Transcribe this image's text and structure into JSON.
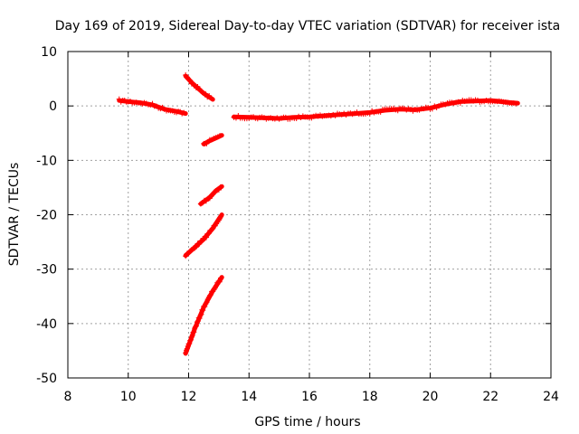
{
  "chart_data": {
    "type": "scatter",
    "title": "Day 169 of 2019, Sidereal Day-to-day VTEC variation (SDTVAR) for receiver ista",
    "xlabel": "GPS time / hours",
    "ylabel": "SDTVAR / TECUs",
    "xlim": [
      8,
      24
    ],
    "ylim": [
      -50,
      10
    ],
    "xticks": [
      8,
      10,
      12,
      14,
      16,
      18,
      20,
      22,
      24
    ],
    "yticks": [
      -50,
      -40,
      -30,
      -20,
      -10,
      0,
      10
    ],
    "grid": true,
    "marker": "+",
    "color": "#ff0000",
    "series": [
      {
        "name": "segment-1",
        "x": [
          9.7,
          10.0,
          10.4,
          10.8,
          11.2,
          11.6,
          11.9
        ],
        "y": [
          1.0,
          0.8,
          0.6,
          0.2,
          -0.6,
          -1.0,
          -1.4
        ]
      },
      {
        "name": "segment-2",
        "x": [
          11.9,
          12.1,
          12.3,
          12.5,
          12.8
        ],
        "y": [
          5.5,
          4.3,
          3.3,
          2.3,
          1.2
        ]
      },
      {
        "name": "segment-3",
        "x": [
          12.5,
          12.7,
          12.9,
          13.1
        ],
        "y": [
          -7.0,
          -6.4,
          -5.9,
          -5.4
        ]
      },
      {
        "name": "segment-4",
        "x": [
          12.4,
          12.7,
          12.9,
          13.1
        ],
        "y": [
          -18.0,
          -16.8,
          -15.6,
          -14.8
        ]
      },
      {
        "name": "segment-5",
        "x": [
          11.9,
          12.2,
          12.5,
          12.8,
          13.0,
          13.1
        ],
        "y": [
          -27.5,
          -26.0,
          -24.5,
          -22.5,
          -20.8,
          -20.0
        ]
      },
      {
        "name": "segment-6",
        "x": [
          11.9,
          12.2,
          12.5,
          12.8,
          13.1
        ],
        "y": [
          -45.5,
          -41.0,
          -37.0,
          -34.0,
          -31.5
        ]
      },
      {
        "name": "segment-7",
        "x": [
          13.5,
          14.0,
          14.5,
          15.0,
          15.5,
          16.0,
          16.5,
          17.0,
          17.5,
          18.0,
          18.5,
          19.0,
          19.5,
          20.0,
          20.5,
          21.0,
          21.5,
          22.0,
          22.5,
          22.9
        ],
        "y": [
          -2.0,
          -2.1,
          -2.2,
          -2.3,
          -2.1,
          -2.0,
          -1.8,
          -1.6,
          -1.4,
          -1.2,
          -0.8,
          -0.6,
          -0.7,
          -0.4,
          0.3,
          0.8,
          0.9,
          1.0,
          0.7,
          0.5
        ]
      }
    ]
  }
}
